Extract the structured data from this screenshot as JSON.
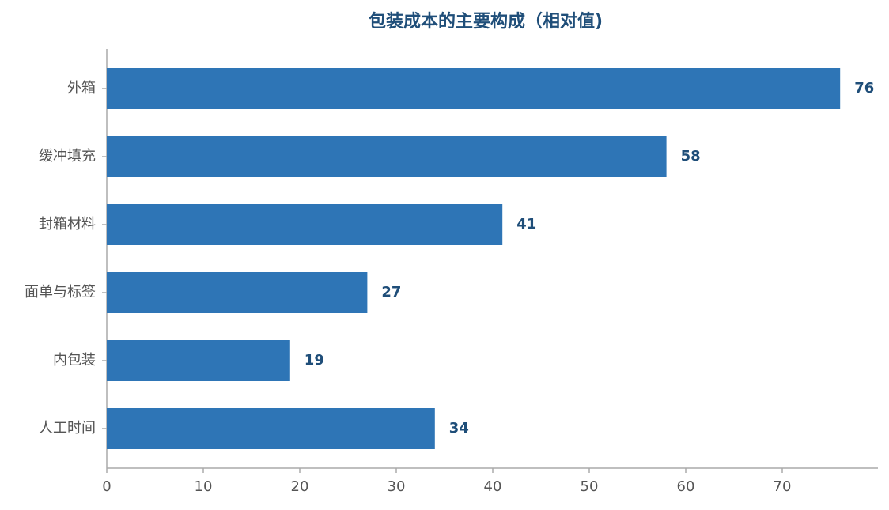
{
  "chart_data": {
    "type": "bar",
    "orientation": "horizontal",
    "title": "包装成本的主要构成（相对值)",
    "categories": [
      "外箱",
      "缓冲填充",
      "封箱材料",
      "面单与标签",
      "内包装",
      "人工时间"
    ],
    "values": [
      76,
      58,
      41,
      27,
      19,
      34
    ],
    "color": "#2e75b6",
    "label_color": "#1f4e79",
    "xlim": [
      0,
      80
    ],
    "xticks": [
      0,
      10,
      20,
      30,
      40,
      50,
      60,
      70
    ],
    "grid": false
  }
}
